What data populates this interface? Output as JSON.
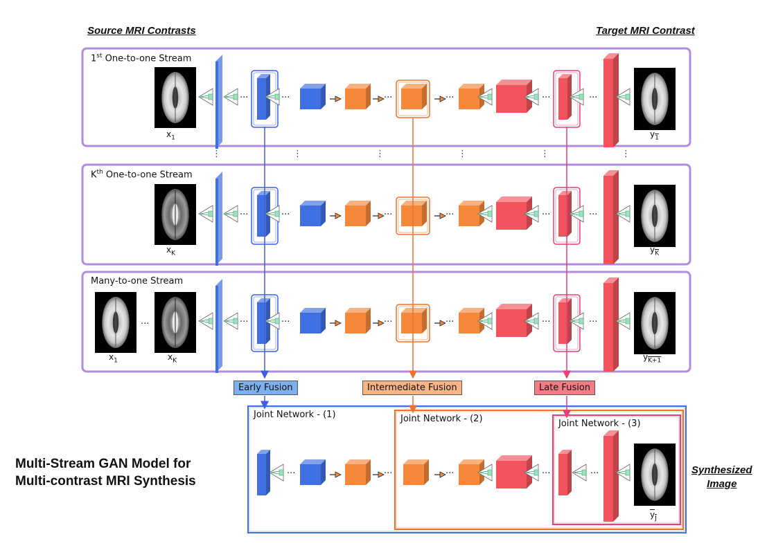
{
  "headers": {
    "source": "Source MRI Contrasts",
    "target": "Target MRI Contrast"
  },
  "streams": {
    "first": {
      "title_num": "1",
      "title_sup": "st",
      "title_rest": " One-to-one Stream",
      "input_var": "x",
      "input_sub": "1",
      "output_var": "y",
      "output_sub": "1"
    },
    "kth": {
      "title_num": "K",
      "title_sup": "th",
      "title_rest": " One-to-one Stream",
      "input_var": "x",
      "input_sub": "K",
      "output_var": "y",
      "output_sub": "K"
    },
    "many": {
      "title": "Many-to-one Stream",
      "input1_var": "x",
      "input1_sub": "1",
      "inputK_var": "x",
      "inputK_sub": "K",
      "output_var": "y",
      "output_sub": "K+1"
    }
  },
  "fusion": {
    "early": "Early Fusion",
    "intermediate": "Intermediate Fusion",
    "late": "Late Fusion"
  },
  "joint": {
    "net1": "Joint Network - (1)",
    "net2": "Joint Network - (2)",
    "net3": "Joint Network - (3)",
    "output_var": "y",
    "output_sub": "J"
  },
  "model_title": {
    "line1": "Multi-Stream GAN Model for",
    "line2": "Multi-contrast MRI Synthesis"
  },
  "synthesized": {
    "line1": "Synthesized",
    "line2": "Image"
  },
  "colors": {
    "stream_border": "#b48ae0",
    "blue": "#3f6fe0",
    "orange": "#f5883a",
    "red": "#f2535c",
    "early_fill": "#7fb0ee",
    "inter_fill": "#f7b486",
    "late_fill": "#f47c84"
  }
}
